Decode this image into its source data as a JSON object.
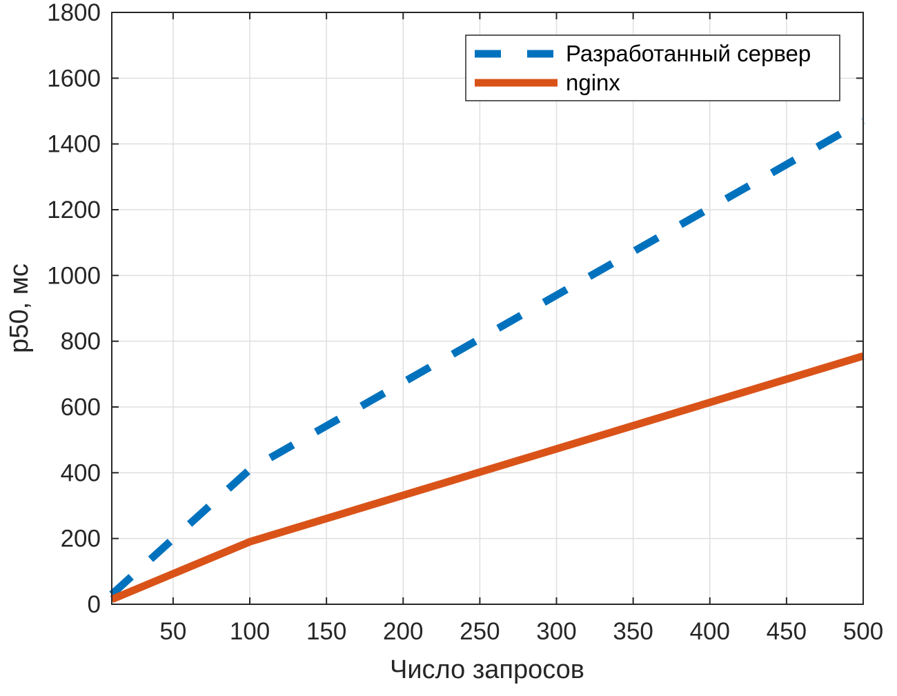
{
  "chart_data": {
    "type": "line",
    "title": "",
    "xlabel": "Число запросов",
    "ylabel": "p50, мс",
    "xlim": [
      10,
      500
    ],
    "ylim": [
      0,
      1800
    ],
    "xticks": [
      50,
      100,
      150,
      200,
      250,
      300,
      350,
      400,
      450,
      500
    ],
    "yticks": [
      0,
      200,
      400,
      600,
      800,
      1000,
      1200,
      1400,
      1600,
      1800
    ],
    "grid": true,
    "legend_position": "top-right",
    "series": [
      {
        "name": "Разработанный сервер",
        "color": "#0072BD",
        "line_style": "dashed",
        "x": [
          10,
          100,
          500
        ],
        "y": [
          30,
          410,
          1470
        ]
      },
      {
        "name": "nginx",
        "color": "#D95319",
        "line_style": "solid",
        "x": [
          10,
          100,
          500
        ],
        "y": [
          15,
          190,
          755
        ]
      }
    ]
  }
}
